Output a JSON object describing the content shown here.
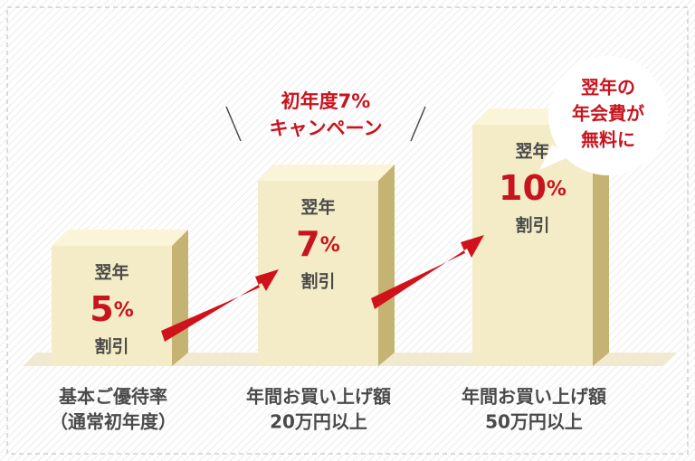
{
  "campaign": {
    "line1": "初年度7%",
    "line2": "キャンペーン"
  },
  "bubble": {
    "lines": [
      "翌年の",
      "年会費が",
      "無料に"
    ]
  },
  "tiers": [
    {
      "prefix": "翌年",
      "rate": 5,
      "unit": "%",
      "suffix": "割引",
      "label": [
        "基本ご優待率",
        "（通常初年度）"
      ]
    },
    {
      "prefix": "翌年",
      "rate": 7,
      "unit": "%",
      "suffix": "割引",
      "label": [
        "年間お買い上げ額",
        "20万円以上"
      ]
    },
    {
      "prefix": "翌年",
      "rate": 10,
      "unit": "%",
      "suffix": "割引",
      "label": [
        "年間お買い上げ額",
        "50万円以上"
      ]
    }
  ]
}
